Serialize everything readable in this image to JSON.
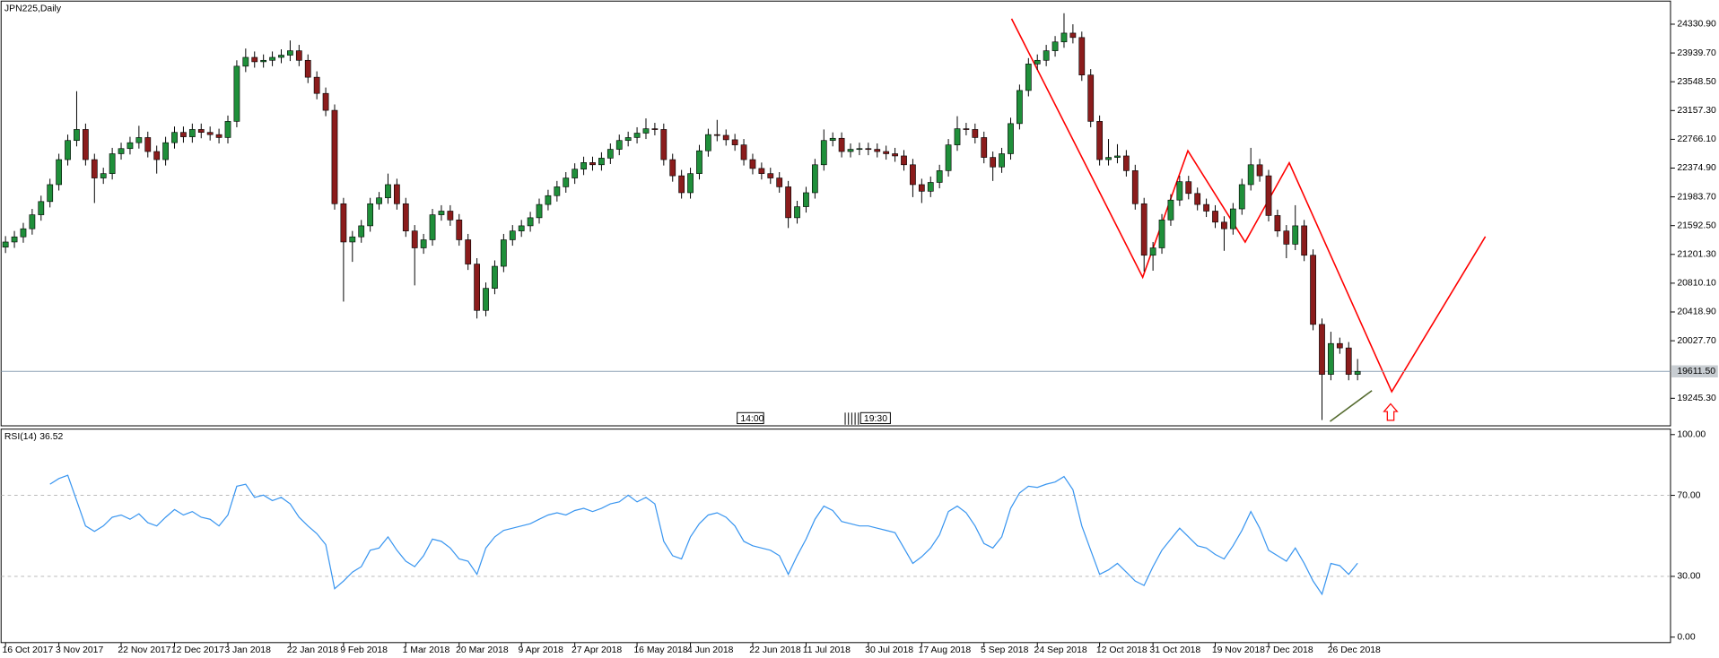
{
  "chart_data": {
    "type": "candlestick",
    "title": "JPN225,Daily",
    "categories": [
      "16 Oct 2017",
      null,
      null,
      null,
      null,
      null,
      "3 Nov 2017",
      null,
      null,
      null,
      null,
      null,
      null,
      "22 Nov 2017",
      null,
      null,
      null,
      null,
      null,
      "12 Dec 2017",
      null,
      null,
      null,
      null,
      null,
      "3 Jan 2018",
      null,
      null,
      null,
      null,
      null,
      null,
      "22 Jan 2018",
      null,
      null,
      null,
      null,
      null,
      "9 Feb 2018",
      null,
      null,
      null,
      null,
      null,
      null,
      "1 Mar 2018",
      null,
      null,
      null,
      null,
      null,
      "20 Mar 2018",
      null,
      null,
      null,
      null,
      null,
      null,
      "9 Apr 2018",
      null,
      null,
      null,
      null,
      null,
      "27 Apr 2018",
      null,
      null,
      null,
      null,
      null,
      null,
      "16 May 2018",
      null,
      null,
      null,
      null,
      null,
      "4 Jun 2018",
      null,
      null,
      null,
      null,
      null,
      null,
      "22 Jun 2018",
      null,
      null,
      null,
      null,
      null,
      "11 Jul 2018",
      null,
      null,
      null,
      null,
      null,
      null,
      "30 Jul 2018",
      null,
      null,
      null,
      null,
      null,
      "17 Aug 2018",
      null,
      null,
      null,
      null,
      null,
      null,
      "5 Sep 2018",
      null,
      null,
      null,
      null,
      null,
      "24 Sep 2018",
      null,
      null,
      null,
      null,
      null,
      null,
      "12 Oct 2018",
      null,
      null,
      null,
      null,
      null,
      "31 Oct 2018",
      null,
      null,
      null,
      null,
      null,
      null,
      "19 Nov 2018",
      null,
      null,
      null,
      null,
      null,
      "7 Dec 2018",
      null,
      null,
      null,
      null,
      null,
      null,
      "26 Dec 2018",
      null,
      null,
      null
    ],
    "open": [
      21300,
      21370,
      21440,
      21550,
      21740,
      21920,
      22150,
      22490,
      22750,
      22900,
      22490,
      22240,
      22300,
      22570,
      22640,
      22720,
      22790,
      22600,
      22490,
      22720,
      22860,
      22800,
      22900,
      22860,
      22830,
      22790,
      23010,
      23760,
      23880,
      23820,
      23840,
      23880,
      23910,
      23970,
      23840,
      23610,
      23390,
      23160,
      21890,
      21370,
      21440,
      21590,
      21890,
      21970,
      22150,
      21890,
      21520,
      21290,
      21400,
      21740,
      21790,
      21670,
      21400,
      21070,
      20440,
      20740,
      21040,
      21400,
      21520,
      21590,
      21700,
      21880,
      22000,
      22120,
      22240,
      22360,
      22450,
      22420,
      22510,
      22630,
      22750,
      22790,
      22850,
      22910,
      22900,
      22490,
      22270,
      22040,
      22300,
      22610,
      22830,
      22820,
      22760,
      22690,
      22490,
      22370,
      22300,
      22240,
      22120,
      21700,
      21850,
      22040,
      22420,
      22750,
      22780,
      22600,
      22630,
      22640,
      22630,
      22600,
      22570,
      22540,
      22420,
      22150,
      22060,
      22180,
      22340,
      22690,
      22910,
      22900,
      22790,
      22520,
      22390,
      22570,
      22980,
      23430,
      23790,
      23840,
      23970,
      24090,
      24210,
      24150,
      23640,
      23010,
      22490,
      22520,
      22540,
      22340,
      21890,
      21190,
      21290,
      21670,
      21940,
      22190,
      22030,
      21880,
      21790,
      21640,
      21550,
      21820,
      22150,
      22420,
      22270,
      21730,
      21520,
      21340,
      21590,
      21190,
      20250,
      19570,
      19990,
      19930,
      19570
    ],
    "high": [
      21450,
      21520,
      21630,
      21820,
      22000,
      22230,
      22570,
      22830,
      23420,
      22980,
      22570,
      22380,
      22650,
      22720,
      22800,
      22950,
      22870,
      22680,
      22800,
      22940,
      22940,
      22980,
      22980,
      22940,
      22910,
      23090,
      23840,
      24000,
      23960,
      23920,
      23960,
      23990,
      24110,
      24050,
      23920,
      23690,
      23470,
      23240,
      21970,
      21520,
      21670,
      21970,
      22050,
      22300,
      22230,
      21970,
      21600,
      21480,
      21820,
      21870,
      21870,
      21750,
      21480,
      21150,
      20820,
      21120,
      21480,
      21600,
      21670,
      21780,
      21960,
      22080,
      22200,
      22320,
      22440,
      22530,
      22530,
      22590,
      22710,
      22830,
      22870,
      22930,
      23050,
      22990,
      22980,
      22570,
      22350,
      22380,
      22690,
      22910,
      23030,
      22900,
      22840,
      22770,
      22570,
      22450,
      22380,
      22320,
      22200,
      21930,
      22120,
      22500,
      22900,
      22860,
      22860,
      22710,
      22720,
      22720,
      22710,
      22680,
      22650,
      22620,
      22500,
      22230,
      22260,
      22420,
      22770,
      23080,
      22990,
      22980,
      22870,
      22600,
      22650,
      23060,
      23510,
      23870,
      23920,
      24050,
      24170,
      24480,
      24330,
      24230,
      23720,
      23090,
      22770,
      22700,
      22620,
      22420,
      21970,
      21370,
      21750,
      22020,
      22270,
      22270,
      22110,
      21960,
      21870,
      21720,
      21900,
      22230,
      22650,
      22500,
      22350,
      21810,
      21600,
      21870,
      21670,
      21270,
      20330,
      20150,
      20070,
      20010,
      19780
    ],
    "low": [
      21220,
      21290,
      21360,
      21470,
      21660,
      21840,
      22070,
      22410,
      22670,
      22410,
      21900,
      22160,
      22220,
      22490,
      22560,
      22640,
      22520,
      22300,
      22410,
      22640,
      22720,
      22720,
      22780,
      22750,
      22710,
      22710,
      22930,
      23680,
      23740,
      23740,
      23760,
      23800,
      23830,
      23760,
      23530,
      23310,
      23080,
      21810,
      20560,
      21100,
      21360,
      21510,
      21810,
      21890,
      21810,
      21440,
      20780,
      21210,
      21320,
      21660,
      21590,
      21320,
      20990,
      20330,
      20360,
      20660,
      20960,
      21320,
      21440,
      21510,
      21620,
      21800,
      21920,
      22040,
      22160,
      22280,
      22340,
      22340,
      22430,
      22550,
      22670,
      22710,
      22770,
      22820,
      22410,
      22190,
      21960,
      21960,
      22220,
      22530,
      22740,
      22680,
      22610,
      22410,
      22290,
      22220,
      22160,
      22040,
      21560,
      21620,
      21770,
      21960,
      22340,
      22670,
      22520,
      22520,
      22550,
      22550,
      22520,
      22490,
      22460,
      22340,
      21980,
      21900,
      21980,
      22100,
      22260,
      22610,
      22820,
      22710,
      22440,
      22200,
      22310,
      22490,
      22900,
      23350,
      23710,
      23760,
      23890,
      24010,
      24070,
      23560,
      22930,
      22410,
      22410,
      22440,
      22260,
      21810,
      20970,
      20980,
      21210,
      21590,
      21860,
      21950,
      21800,
      21710,
      21560,
      21250,
      21470,
      21740,
      22070,
      22190,
      21650,
      21440,
      21150,
      21260,
      21110,
      20170,
      18950,
      19490,
      19850,
      19490,
      19490
    ],
    "close": [
      21370,
      21440,
      21550,
      21740,
      21920,
      22150,
      22490,
      22750,
      22900,
      22490,
      22240,
      22300,
      22570,
      22640,
      22720,
      22790,
      22600,
      22490,
      22720,
      22860,
      22800,
      22900,
      22860,
      22830,
      22790,
      23010,
      23760,
      23880,
      23820,
      23840,
      23880,
      23910,
      23970,
      23840,
      23610,
      23390,
      23160,
      21890,
      21370,
      21440,
      21590,
      21890,
      21970,
      22150,
      21890,
      21520,
      21290,
      21400,
      21740,
      21790,
      21670,
      21400,
      21070,
      20440,
      20740,
      21040,
      21400,
      21520,
      21590,
      21700,
      21880,
      22000,
      22120,
      22240,
      22360,
      22450,
      22420,
      22510,
      22630,
      22750,
      22790,
      22850,
      22910,
      22900,
      22490,
      22270,
      22040,
      22300,
      22610,
      22830,
      22820,
      22760,
      22690,
      22490,
      22370,
      22300,
      22240,
      22120,
      21700,
      21850,
      22040,
      22420,
      22750,
      22780,
      22600,
      22630,
      22640,
      22630,
      22600,
      22570,
      22540,
      22420,
      22150,
      22060,
      22180,
      22340,
      22690,
      22910,
      22900,
      22790,
      22520,
      22390,
      22570,
      22980,
      23430,
      23790,
      23840,
      23970,
      24090,
      24210,
      24150,
      23640,
      23010,
      22490,
      22520,
      22540,
      22340,
      21890,
      21190,
      21290,
      21670,
      21940,
      22190,
      22030,
      21880,
      21790,
      21640,
      21550,
      21820,
      22150,
      22420,
      22270,
      21730,
      21520,
      21340,
      21590,
      21190,
      20250,
      19570,
      19990,
      19930,
      19570,
      19611.5
    ],
    "up_color": "#1f8f3a",
    "down_color": "#8b1c1c",
    "wick_color": "#000000",
    "ylim": [
      18871,
      24615
    ],
    "yticks": [
      {
        "value": 24330.9,
        "label": "24330.90"
      },
      {
        "value": 23939.7,
        "label": "23939.70"
      },
      {
        "value": 23548.5,
        "label": "23548.50"
      },
      {
        "value": 23157.3,
        "label": "23157.30"
      },
      {
        "value": 22766.1,
        "label": "22766.10"
      },
      {
        "value": 22374.9,
        "label": "22374.90"
      },
      {
        "value": 21983.7,
        "label": "21983.70"
      },
      {
        "value": 21592.5,
        "label": "21592.50"
      },
      {
        "value": 21201.3,
        "label": "21201.30"
      },
      {
        "value": 20810.1,
        "label": "20810.10"
      },
      {
        "value": 20418.9,
        "label": "20418.90"
      },
      {
        "value": 20027.7,
        "label": "20027.70"
      },
      {
        "value": 19245.3,
        "label": "19245.30"
      }
    ],
    "last_price": {
      "value": 19611.5,
      "label": "19611.50"
    },
    "events": [
      "14:00",
      "19:30"
    ],
    "rsi": {
      "type": "line",
      "title": "RSI(14)",
      "color": "#3a96f0",
      "values": [
        null,
        null,
        null,
        null,
        null,
        75.5,
        78.3,
        79.9,
        67.4,
        54.9,
        52.2,
        54.9,
        59.2,
        60.3,
        58.2,
        60.9,
        56.5,
        54.9,
        59.2,
        63.0,
        60.3,
        62.0,
        59.2,
        58.2,
        54.9,
        60.3,
        74.5,
        75.5,
        69.0,
        70.1,
        67.4,
        69.0,
        65.8,
        59.2,
        54.9,
        51.1,
        45.7,
        23.9,
        27.7,
        32.1,
        34.8,
        42.9,
        44.0,
        49.5,
        42.9,
        37.5,
        34.8,
        40.2,
        48.4,
        47.3,
        44.0,
        38.6,
        37.5,
        31.0,
        44.0,
        49.5,
        52.7,
        53.8,
        54.9,
        56.0,
        58.2,
        60.3,
        61.4,
        60.3,
        62.5,
        63.6,
        62.0,
        63.6,
        65.8,
        66.8,
        70.1,
        66.8,
        69.0,
        65.8,
        47.3,
        40.2,
        38.6,
        49.5,
        56.0,
        60.3,
        61.4,
        59.2,
        54.9,
        47.3,
        45.1,
        44.0,
        42.9,
        40.2,
        31.0,
        40.2,
        48.4,
        58.2,
        64.7,
        62.5,
        57.1,
        56.0,
        54.9,
        54.9,
        53.8,
        52.7,
        51.6,
        44.0,
        36.4,
        39.7,
        44.0,
        50.5,
        62.0,
        64.7,
        61.4,
        54.9,
        46.2,
        44.0,
        49.5,
        63.6,
        71.2,
        74.5,
        73.9,
        75.5,
        76.6,
        79.3,
        72.8,
        54.9,
        42.9,
        31.0,
        33.2,
        36.4,
        32.1,
        27.7,
        25.5,
        34.8,
        42.9,
        48.4,
        53.8,
        49.5,
        45.1,
        44.0,
        40.8,
        38.6,
        45.1,
        52.7,
        62.0,
        53.8,
        42.9,
        40.2,
        37.5,
        44.0,
        36.4,
        27.7,
        21.2,
        36.4,
        35.3,
        31.0,
        36.52
      ],
      "ylim": [
        -2.7,
        102.7
      ],
      "yticks": [
        {
          "value": 100,
          "label": "100.00"
        },
        {
          "value": 70,
          "label": "70.00"
        },
        {
          "value": 30,
          "label": "30.00"
        },
        {
          "value": 0,
          "label": "0.00"
        }
      ],
      "levels": [
        70,
        30
      ]
    }
  }
}
